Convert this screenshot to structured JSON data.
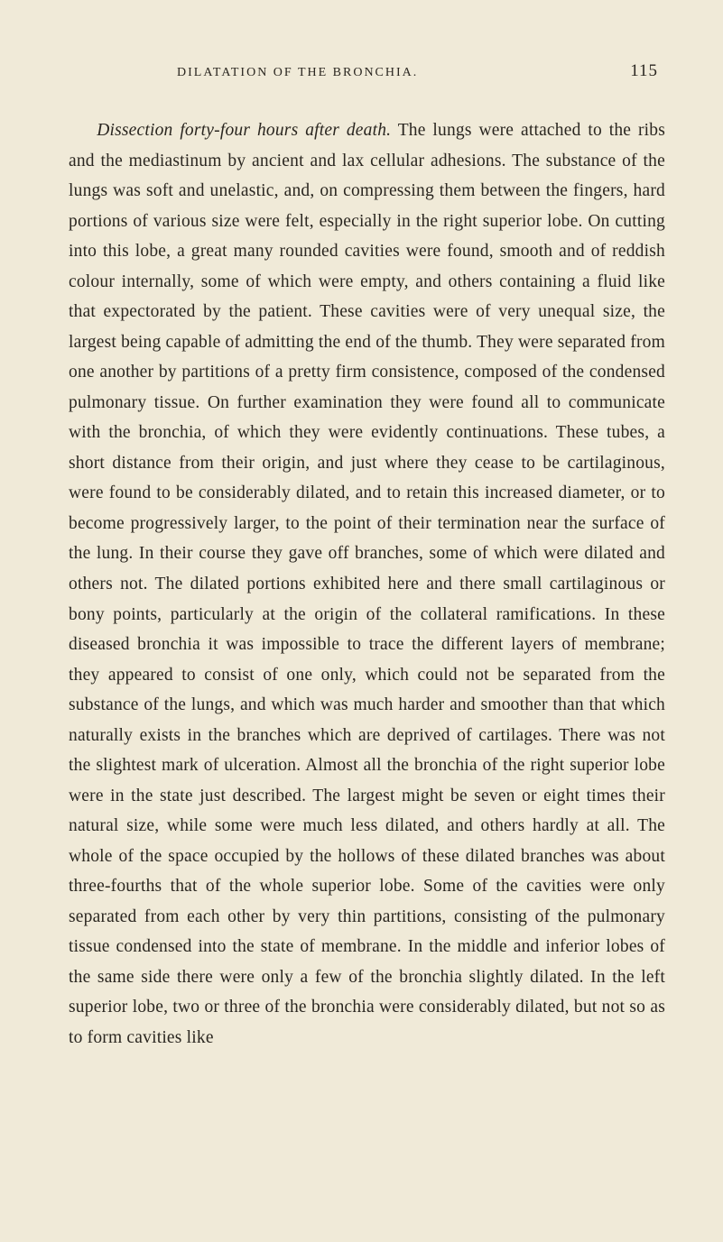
{
  "header": {
    "running_head": "DILATATION OF THE BRONCHIA.",
    "page_number": "115"
  },
  "body": {
    "lead_in_italic": "Dissection forty-four hours after death.",
    "paragraph": " The lungs were attached to the ribs and the mediastinum by ancient and lax cellular adhesions. The substance of the lungs was soft and unelastic, and, on compressing them between the fingers, hard portions of various size were felt, especially in the right superior lobe. On cutting into this lobe, a great many rounded cavities were found, smooth and of reddish colour internally, some of which were empty, and others containing a fluid like that expectorated by the patient. These cavities were of very unequal size, the largest being capable of admitting the end of the thumb. They were separated from one another by partitions of a pretty firm consistence, composed of the condensed pulmonary tissue. On further examination they were found all to communicate with the bronchia, of which they were evidently continuations. These tubes, a short distance from their origin, and just where they cease to be cartilaginous, were found to be considerably dilated, and to retain this increased diameter, or to become progressively larger, to the point of their termination near the surface of the lung. In their course they gave off branches, some of which were dilated and others not. The dilated portions exhibited here and there small cartilaginous or bony points, particularly at the origin of the collateral ramifications. In these diseased bronchia it was impossible to trace the different layers of membrane; they appeared to consist of one only, which could not be separated from the substance of the lungs, and which was much harder and smoother than that which naturally exists in the branches which are deprived of cartilages. There was not the slightest mark of ulceration. Almost all the bronchia of the right superior lobe were in the state just described. The largest might be seven or eight times their natural size, while some were much less dilated, and others hardly at all. The whole of the space occupied by the hollows of these dilated branches was about three-fourths that of the whole superior lobe. Some of the cavities were only separated from each other by very thin partitions, consisting of the pulmonary tissue condensed into the state of membrane. In the middle and inferior lobes of the same side there were only a few of the bronchia slightly dilated. In the left superior lobe, two or three of the bronchia were considerably dilated, but not so as to form cavities like"
  },
  "styling": {
    "background_color": "#f0ead8",
    "text_color": "#2a2620",
    "body_font_size": 19.5,
    "line_height": 1.72,
    "header_font_size": 14,
    "page_number_font_size": 19
  }
}
